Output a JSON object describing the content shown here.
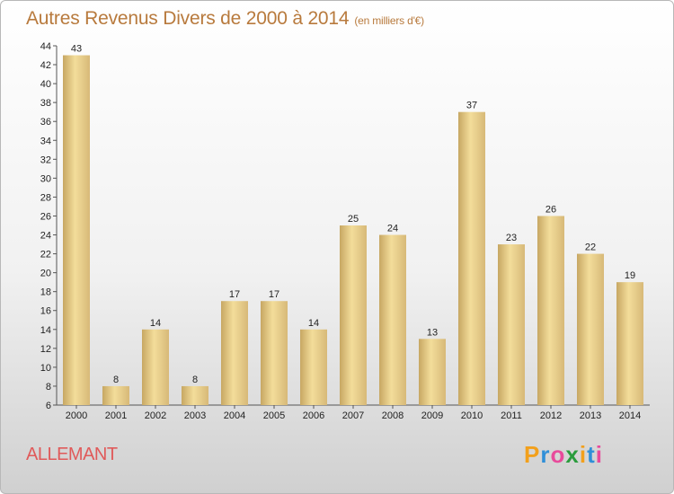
{
  "title": {
    "main": "Autres Revenus Divers de 2000 à 2014",
    "unit": "(en milliers d'€)"
  },
  "commune": "ALLEMANT",
  "logo": {
    "letters": [
      "P",
      "r",
      "o",
      "x",
      "i",
      "t",
      "i"
    ],
    "colors": [
      "#f2a01c",
      "#2f8fd8",
      "#e84b9b",
      "#2a9c3c",
      "#f2a01c",
      "#2f8fd8",
      "#e84b9b"
    ]
  },
  "colors": {
    "bar_light": "#f3dd9a",
    "bar_dark": "#c7a763",
    "title": "#b87a3d",
    "commune": "#e05a5a"
  },
  "chart_data": {
    "type": "bar",
    "title": "Autres Revenus Divers de 2000 à 2014",
    "subtitle": "(en milliers d'€)",
    "categories": [
      "2000",
      "2001",
      "2002",
      "2003",
      "2004",
      "2005",
      "2006",
      "2007",
      "2008",
      "2009",
      "2010",
      "2011",
      "2012",
      "2013",
      "2014"
    ],
    "values": [
      43,
      8,
      14,
      8,
      17,
      17,
      14,
      25,
      24,
      13,
      37,
      23,
      26,
      22,
      19
    ],
    "ylim": [
      6,
      44
    ],
    "yticks": [
      6,
      8,
      10,
      12,
      14,
      16,
      18,
      20,
      22,
      24,
      26,
      28,
      30,
      32,
      34,
      36,
      38,
      40,
      42,
      44
    ],
    "xlabel": "",
    "ylabel": "",
    "grid": false,
    "data_labels": true
  }
}
